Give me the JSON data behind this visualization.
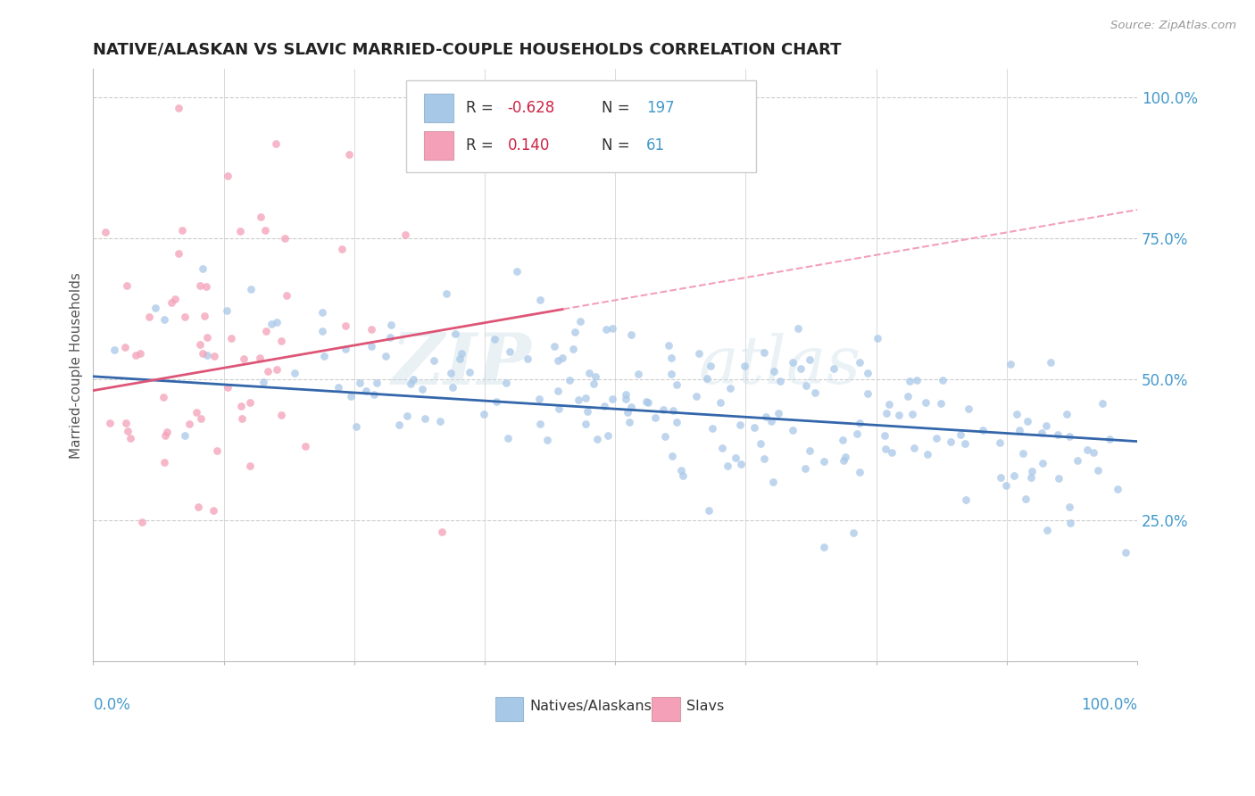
{
  "title": "NATIVE/ALASKAN VS SLAVIC MARRIED-COUPLE HOUSEHOLDS CORRELATION CHART",
  "source_text": "Source: ZipAtlas.com",
  "ylabel": "Married-couple Households",
  "blue_color": "#a8c8e8",
  "pink_color": "#f4a0b8",
  "blue_line_color": "#3366aa",
  "pink_line_color": "#dd5577",
  "pink_dashed_color": "#f4a0b8",
  "watermark_text": "ZIP",
  "watermark_text2": "atlas",
  "R_blue": -0.628,
  "N_blue": 197,
  "R_pink": 0.14,
  "N_pink": 61,
  "title_color": "#222222",
  "axis_label_color": "#4499cc",
  "legend_r_color": "#cc2244",
  "legend_n_color": "#4499cc",
  "background_color": "#ffffff",
  "grid_color": "#cccccc",
  "blue_intercept": 0.505,
  "blue_slope": -0.115,
  "pink_intercept": 0.48,
  "pink_slope": 0.32
}
